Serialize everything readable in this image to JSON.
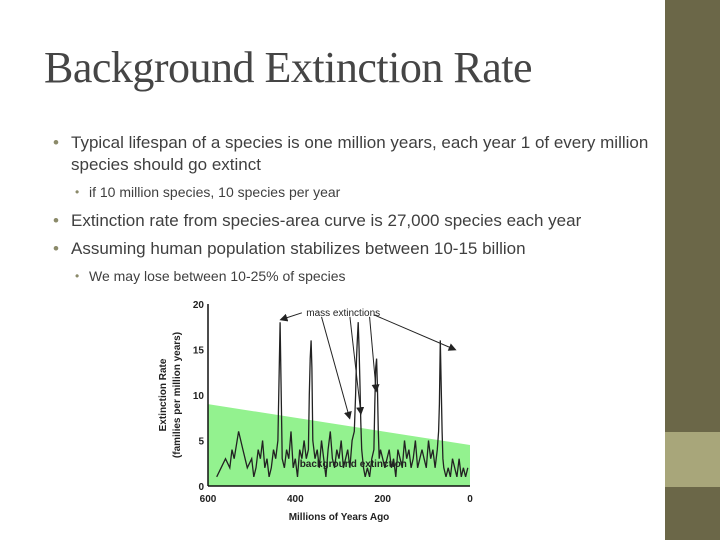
{
  "slide": {
    "title": "Background Extinction Rate",
    "bullets": [
      "Typical lifespan of a species is one million years, each year 1 of every million species should go extinct",
      "if 10 million species, 10 species per year",
      "Extinction rate from species-area curve is 27,000 species each year",
      "Assuming human population stabilizes between 10-15 billion",
      "We may lose between 10-25% of species"
    ]
  },
  "colors": {
    "band_dark": "#6b6748",
    "band_light": "#a8a67a",
    "background_band": "#93f28f",
    "line": "#222222"
  },
  "chart_data": {
    "type": "line",
    "ylabel_line1": "Extinction Rate",
    "ylabel_line2": "(families per million years)",
    "xlabel": "Millions of Years Ago",
    "xlim": [
      600,
      0
    ],
    "ylim": [
      0,
      20
    ],
    "xticks": [
      600,
      400,
      200,
      0
    ],
    "yticks": [
      0,
      5,
      10,
      15,
      20
    ],
    "annotations": {
      "mass": "mass extinctions",
      "background": "background extinction"
    },
    "background_band": {
      "x": [
        600,
        0
      ],
      "upper": [
        9,
        4.5
      ]
    },
    "series": [
      {
        "x": [
          580,
          570,
          560,
          550,
          545,
          540,
          530,
          520,
          510,
          500,
          495,
          490,
          485,
          480,
          475,
          470,
          465,
          460,
          455,
          450,
          445,
          440,
          435,
          430,
          425,
          420,
          415,
          410,
          405,
          400,
          395,
          390,
          385,
          380,
          375,
          370,
          368,
          366,
          364,
          362,
          360,
          355,
          350,
          345,
          340,
          335,
          330,
          325,
          320,
          315,
          310,
          305,
          300,
          295,
          290,
          285,
          280,
          275,
          270,
          265,
          262,
          260,
          258,
          256,
          254,
          252,
          250,
          248,
          246,
          244,
          240,
          235,
          230,
          225,
          220,
          218,
          216,
          214,
          212,
          210,
          208,
          205,
          200,
          195,
          190,
          185,
          180,
          175,
          170,
          165,
          160,
          155,
          150,
          145,
          140,
          135,
          130,
          125,
          120,
          115,
          110,
          105,
          100,
          95,
          90,
          85,
          80,
          75,
          72,
          70,
          68,
          66,
          64,
          62,
          60,
          55,
          50,
          45,
          40,
          35,
          30,
          25,
          20,
          15,
          10,
          5
        ],
        "values": [
          1,
          2,
          3,
          2,
          4,
          3,
          6,
          4,
          2,
          3,
          1,
          2,
          4,
          3,
          5,
          2,
          3,
          1,
          2,
          4,
          3,
          5,
          18,
          3,
          2,
          4,
          3,
          6,
          2,
          3,
          1,
          4,
          3,
          5,
          3,
          4,
          10,
          14,
          16,
          13,
          5,
          3,
          4,
          2,
          5,
          3,
          1,
          4,
          6,
          3,
          2,
          4,
          3,
          5,
          2,
          3,
          4,
          2,
          5,
          6,
          10,
          14,
          16,
          18,
          15,
          11,
          7,
          4,
          3,
          2,
          1,
          2,
          1,
          3,
          4,
          9,
          13,
          14,
          11,
          6,
          3,
          4,
          3,
          2,
          3,
          4,
          2,
          3,
          1,
          4,
          3,
          2,
          5,
          3,
          4,
          2,
          3,
          5,
          2,
          3,
          4,
          3,
          2,
          5,
          3,
          4,
          2,
          4,
          6,
          9,
          16,
          11,
          6,
          3,
          2,
          1,
          2,
          1,
          3,
          2,
          1,
          3,
          1,
          2,
          1,
          2
        ]
      }
    ]
  }
}
